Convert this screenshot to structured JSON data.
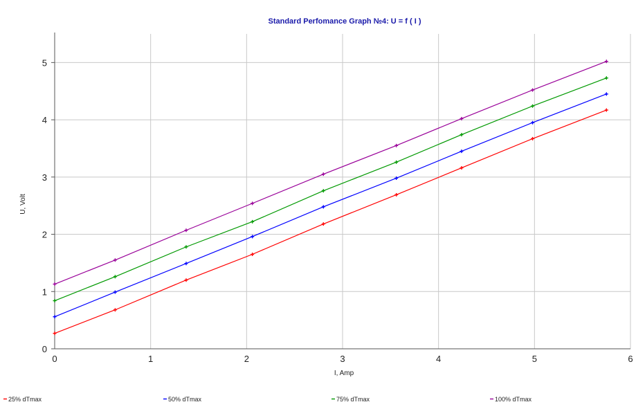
{
  "chart_data": {
    "type": "line",
    "title": "Standard Perfomance Graph №4: U = f ( I )",
    "xlabel": "I, Amp",
    "ylabel": "U, Volt",
    "xlim": [
      0,
      6
    ],
    "ylim": [
      0,
      5.5
    ],
    "xticks": [
      "0",
      "1",
      "2",
      "3",
      "4",
      "5",
      "6"
    ],
    "yticks": [
      "0",
      "1",
      "2",
      "3",
      "4",
      "5"
    ],
    "grid": true,
    "legend_position": "bottom",
    "x": [
      0,
      0.63,
      1.37,
      2.06,
      2.8,
      3.56,
      4.24,
      4.98,
      5.75
    ],
    "series": [
      {
        "name": "25% dTmax",
        "color": "#ff0000",
        "values": [
          0.27,
          0.68,
          1.2,
          1.65,
          2.18,
          2.69,
          3.16,
          3.67,
          4.17
        ]
      },
      {
        "name": "50% dTmax",
        "color": "#0000ff",
        "values": [
          0.56,
          0.99,
          1.49,
          1.96,
          2.48,
          2.98,
          3.45,
          3.95,
          4.45
        ]
      },
      {
        "name": "75% dTmax",
        "color": "#009900",
        "values": [
          0.84,
          1.26,
          1.78,
          2.22,
          2.76,
          3.26,
          3.74,
          4.24,
          4.73
        ]
      },
      {
        "name": "100% dTmax",
        "color": "#990099",
        "values": [
          1.13,
          1.55,
          2.07,
          2.54,
          3.05,
          3.55,
          4.02,
          4.52,
          5.02
        ]
      }
    ]
  }
}
